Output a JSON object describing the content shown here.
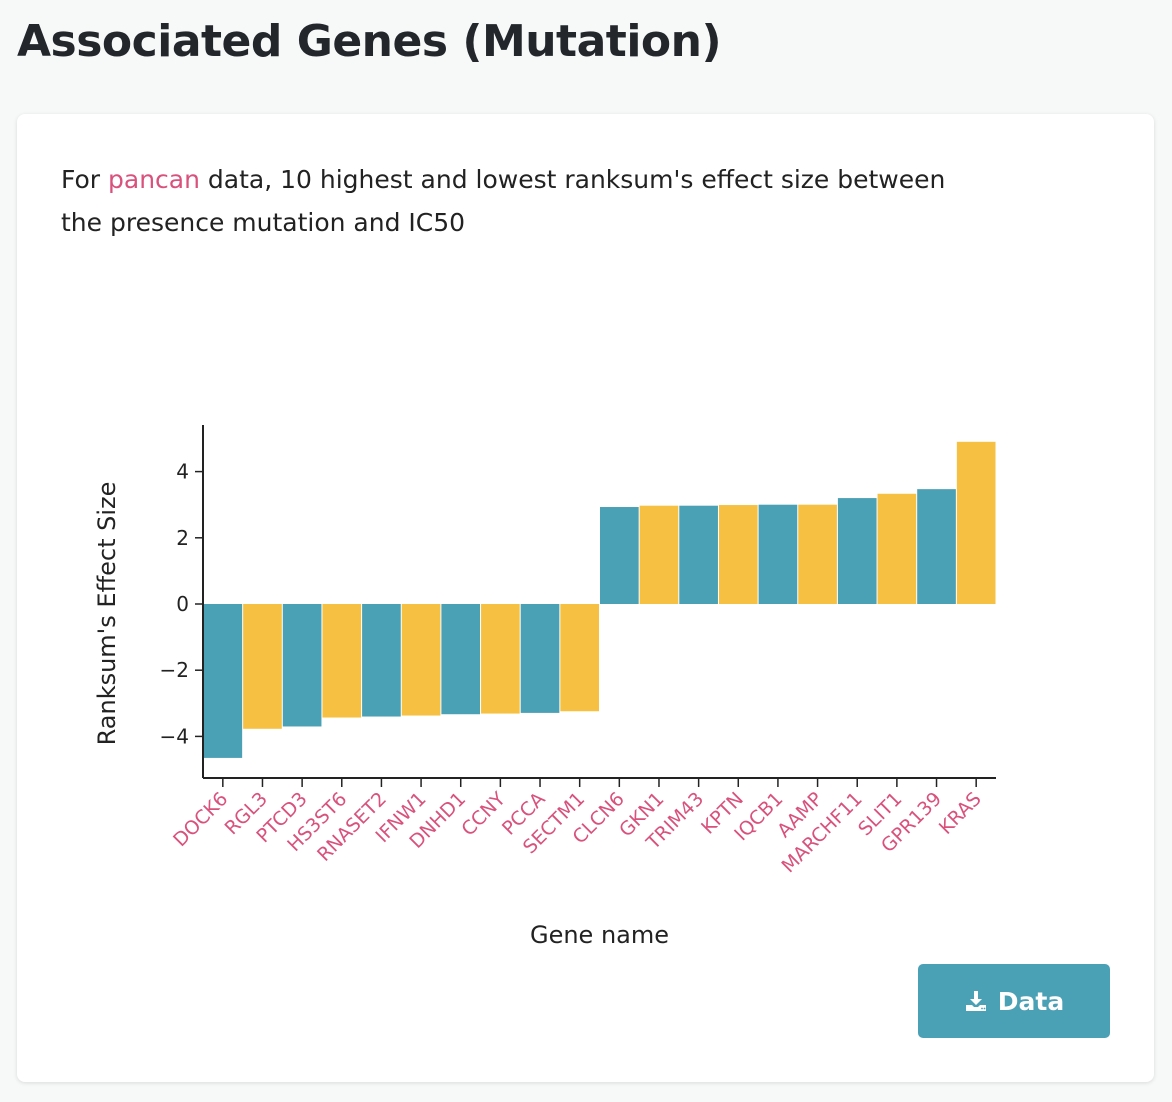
{
  "page": {
    "title": "Associated Genes (Mutation)"
  },
  "description": {
    "prefix": "For ",
    "link_text": "pancan",
    "suffix": " data, 10 highest and lowest ranksum's effect size between the presence mutation and IC50"
  },
  "download_button": {
    "label": "Data",
    "icon": "download-icon"
  },
  "colors": {
    "teal": "#4aa0b5",
    "yellow": "#f6c142",
    "label_pink": "#d9517d",
    "axis": "#222222"
  },
  "chart_data": {
    "type": "bar",
    "title": "",
    "xlabel": "Gene name",
    "ylabel": "Ranksum's Effect Size",
    "ylim": [
      -5.1,
      5.4
    ],
    "yticks": [
      4,
      2,
      0,
      -2,
      -4
    ],
    "ytick_labels": [
      "4",
      "2",
      "0",
      "−2",
      "−4"
    ],
    "grid": false,
    "categories": [
      "DOCK6",
      "RGL3",
      "PTCD3",
      "HS3ST6",
      "RNASET2",
      "IFNW1",
      "DNHD1",
      "CCNY",
      "PCCA",
      "SECTM1",
      "CLCN6",
      "GKN1",
      "TRIM43",
      "KPTN",
      "IQCB1",
      "AAMP",
      "MARCHF11",
      "SLIT1",
      "GPR139",
      "KRAS"
    ],
    "values": [
      -4.65,
      -3.77,
      -3.7,
      -3.43,
      -3.4,
      -3.37,
      -3.33,
      -3.31,
      -3.29,
      -3.24,
      2.93,
      2.97,
      2.97,
      2.99,
      3.0,
      3.0,
      3.2,
      3.33,
      3.47,
      4.9
    ],
    "bar_colors": [
      "#4aa0b5",
      "#f6c142",
      "#4aa0b5",
      "#f6c142",
      "#4aa0b5",
      "#f6c142",
      "#4aa0b5",
      "#f6c142",
      "#4aa0b5",
      "#f6c142",
      "#4aa0b5",
      "#f6c142",
      "#4aa0b5",
      "#f6c142",
      "#4aa0b5",
      "#f6c142",
      "#4aa0b5",
      "#f6c142",
      "#4aa0b5",
      "#f6c142"
    ]
  }
}
